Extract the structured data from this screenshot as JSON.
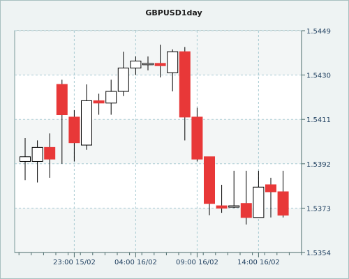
{
  "chart_data": {
    "type": "candlestick",
    "title": "GBPUSD1day",
    "xlabel": "",
    "ylabel": "",
    "ylim": [
      1.5354,
      1.5449
    ],
    "yticks": [
      "1.5449",
      "1.5430",
      "1.5411",
      "1.5392",
      "1.5373",
      "1.5354"
    ],
    "ytick_values": [
      1.5449,
      1.543,
      1.5411,
      1.5392,
      1.5373,
      1.5354
    ],
    "xticks": [
      "23:00 15/02",
      "04:00 16/02",
      "09:00 16/02",
      "14:00 16/02"
    ],
    "xtick_bar_index": [
      4,
      9,
      14,
      19
    ],
    "grid": true,
    "colors": {
      "up": "#ffffff",
      "down": "#e83838",
      "wick": "#000000"
    },
    "candles": [
      {
        "o": 1.5393,
        "h": 1.5403,
        "l": 1.5385,
        "c": 1.5395
      },
      {
        "o": 1.5393,
        "h": 1.5402,
        "l": 1.5384,
        "c": 1.5399
      },
      {
        "o": 1.5399,
        "h": 1.5405,
        "l": 1.5386,
        "c": 1.5394
      },
      {
        "o": 1.5426,
        "h": 1.5428,
        "l": 1.5392,
        "c": 1.5413
      },
      {
        "o": 1.5412,
        "h": 1.5415,
        "l": 1.5393,
        "c": 1.5401
      },
      {
        "o": 1.54,
        "h": 1.5426,
        "l": 1.5398,
        "c": 1.5419
      },
      {
        "o": 1.5419,
        "h": 1.5422,
        "l": 1.5413,
        "c": 1.5418
      },
      {
        "o": 1.5418,
        "h": 1.5428,
        "l": 1.5413,
        "c": 1.5423
      },
      {
        "o": 1.5423,
        "h": 1.544,
        "l": 1.5421,
        "c": 1.5433
      },
      {
        "o": 1.5433,
        "h": 1.5438,
        "l": 1.543,
        "c": 1.5436
      },
      {
        "o": 1.5435,
        "h": 1.5438,
        "l": 1.5432,
        "c": 1.5435
      },
      {
        "o": 1.5435,
        "h": 1.5443,
        "l": 1.5429,
        "c": 1.5434
      },
      {
        "o": 1.5431,
        "h": 1.5441,
        "l": 1.5423,
        "c": 1.544
      },
      {
        "o": 1.544,
        "h": 1.5442,
        "l": 1.5402,
        "c": 1.5412
      },
      {
        "o": 1.5412,
        "h": 1.5416,
        "l": 1.5393,
        "c": 1.5394
      },
      {
        "o": 1.5395,
        "h": 1.5395,
        "l": 1.537,
        "c": 1.5375
      },
      {
        "o": 1.5374,
        "h": 1.5383,
        "l": 1.5371,
        "c": 1.5373
      },
      {
        "o": 1.5374,
        "h": 1.5389,
        "l": 1.5373,
        "c": 1.5374
      },
      {
        "o": 1.5375,
        "h": 1.5389,
        "l": 1.5366,
        "c": 1.5369
      },
      {
        "o": 1.5369,
        "h": 1.5389,
        "l": 1.5369,
        "c": 1.5382
      },
      {
        "o": 1.5383,
        "h": 1.5386,
        "l": 1.5369,
        "c": 1.538
      },
      {
        "o": 1.538,
        "h": 1.5389,
        "l": 1.5369,
        "c": 1.537
      }
    ]
  }
}
